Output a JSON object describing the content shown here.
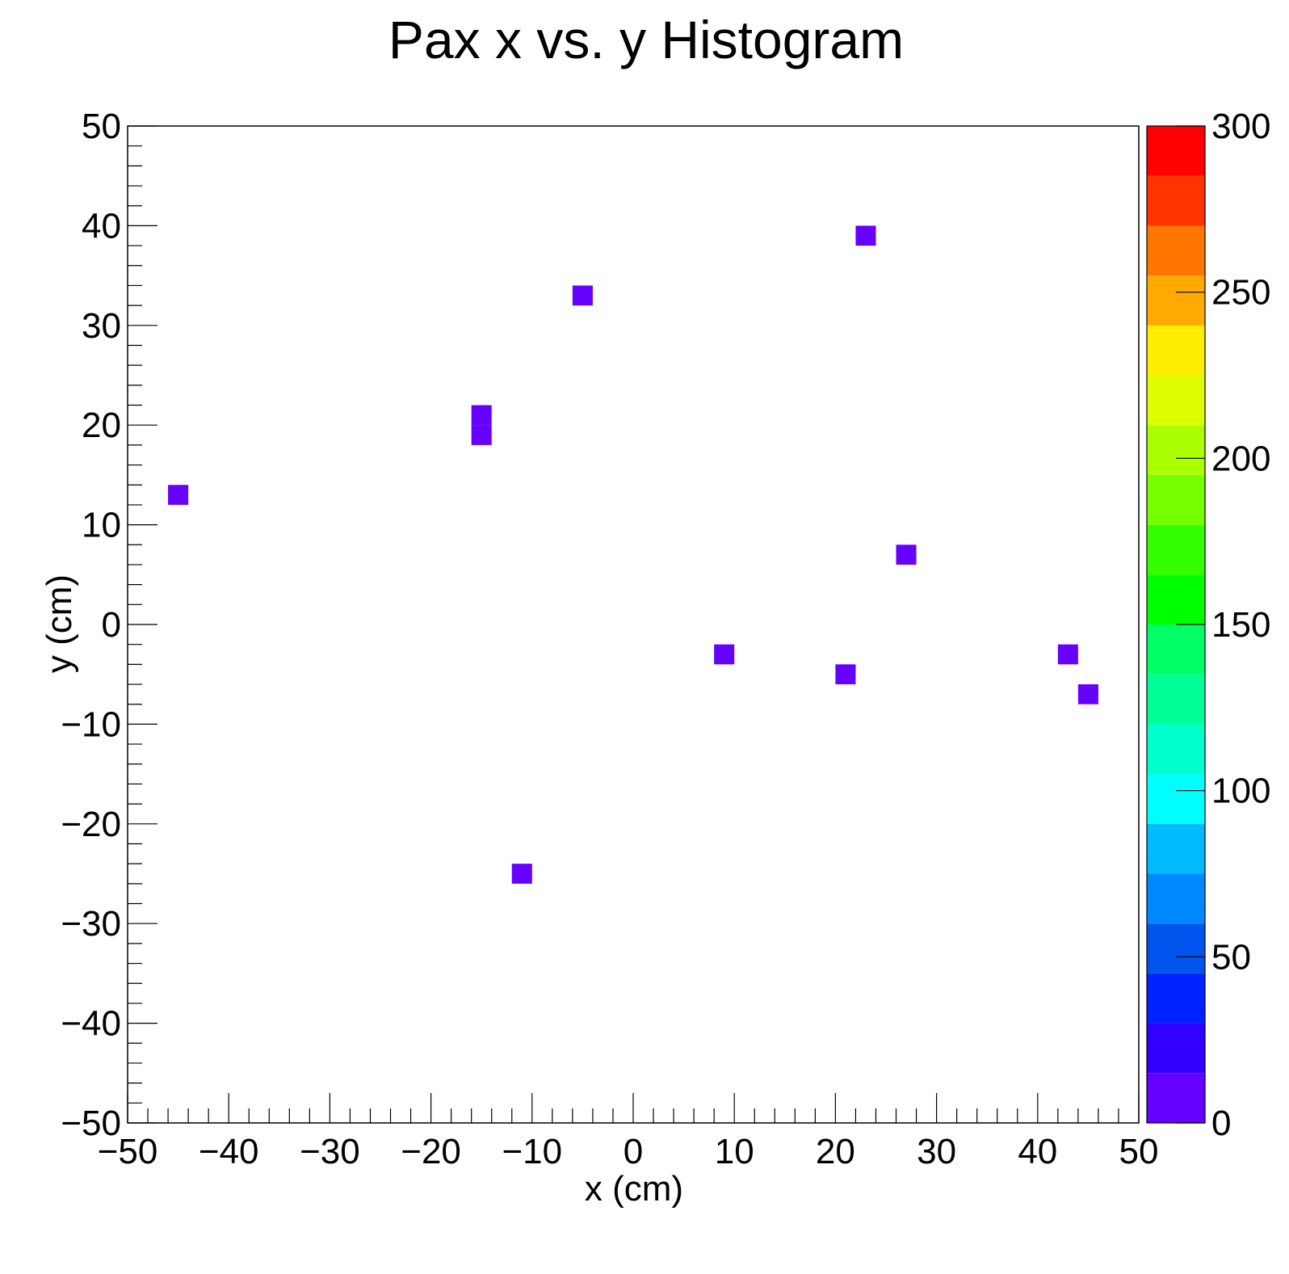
{
  "chart_data": {
    "type": "heatmap",
    "title": "Pax x vs. y Histogram",
    "xlabel": "x (cm)",
    "ylabel": "y (cm)",
    "xlim": [
      -50,
      50
    ],
    "ylim": [
      -50,
      50
    ],
    "bin_width": 2,
    "x_ticks": [
      "−50",
      "−40",
      "−30",
      "−20",
      "−10",
      "0",
      "10",
      "20",
      "30",
      "40",
      "50"
    ],
    "x_tick_values": [
      -50,
      -40,
      -30,
      -20,
      -10,
      0,
      10,
      20,
      30,
      40,
      50
    ],
    "y_ticks": [
      "−50",
      "−40",
      "−30",
      "−20",
      "−10",
      "0",
      "10",
      "20",
      "30",
      "40",
      "50"
    ],
    "y_tick_values": [
      -50,
      -40,
      -30,
      -20,
      -10,
      0,
      10,
      20,
      30,
      40,
      50
    ],
    "bins": [
      {
        "x": -45,
        "y": 13,
        "value": 1
      },
      {
        "x": -15,
        "y": 21,
        "value": 1
      },
      {
        "x": -15,
        "y": 19,
        "value": 1
      },
      {
        "x": -11,
        "y": -25,
        "value": 1
      },
      {
        "x": -5,
        "y": 33,
        "value": 1
      },
      {
        "x": 9,
        "y": -3,
        "value": 1
      },
      {
        "x": 21,
        "y": -5,
        "value": 1
      },
      {
        "x": 23,
        "y": 39,
        "value": 1
      },
      {
        "x": 27,
        "y": 7,
        "value": 1
      },
      {
        "x": 43,
        "y": -3,
        "value": 1
      },
      {
        "x": 45,
        "y": -7,
        "value": 1
      }
    ],
    "colorbar": {
      "range": [
        0,
        300
      ],
      "tick_values": [
        0,
        50,
        100,
        150,
        200,
        250,
        300
      ],
      "tick_labels": [
        "0",
        "50",
        "100",
        "150",
        "200",
        "250",
        "300"
      ],
      "palette": [
        "#6600ff",
        "#3300ff",
        "#0022ff",
        "#0055ee",
        "#0088ff",
        "#00bbff",
        "#00ffff",
        "#00ffcc",
        "#00ff99",
        "#00ff66",
        "#00ff00",
        "#33ff00",
        "#77ff00",
        "#aaff00",
        "#ddff00",
        "#ffee00",
        "#ffaa00",
        "#ff7700",
        "#ff3300",
        "#ff0000"
      ]
    },
    "grid": false,
    "legend": "none"
  }
}
